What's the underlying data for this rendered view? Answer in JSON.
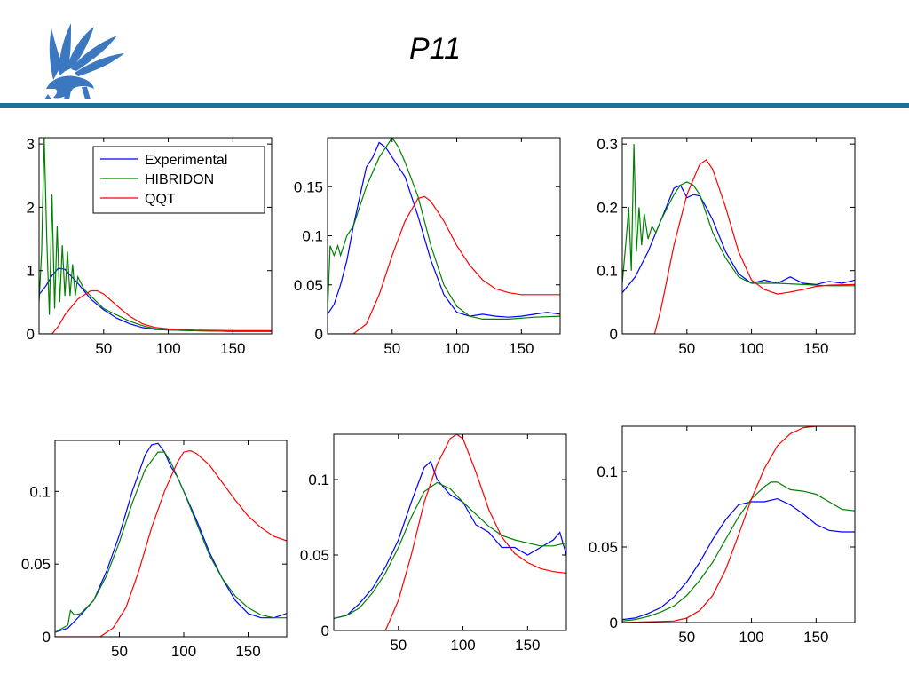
{
  "slide": {
    "title": "P11",
    "rule_color": "#1f6f9b",
    "logo_icon": "griffin-logo-icon",
    "logo_color": "#3c78c0"
  },
  "chart_data": [
    {
      "type": "line",
      "xlim": [
        0,
        180
      ],
      "ylim": [
        0,
        3.1
      ],
      "xticks": [
        "50",
        "100",
        "150"
      ],
      "yticks": [
        "0",
        "1",
        "2",
        "3"
      ],
      "legend": {
        "placement": "top-right",
        "entries": [
          "Experimental",
          "HIBRIDON",
          "QQT"
        ]
      },
      "series": [
        {
          "name": "Experimental",
          "color": "#0000ff",
          "x": [
            0,
            5,
            10,
            15,
            20,
            30,
            40,
            50,
            60,
            70,
            80,
            90,
            100,
            120,
            150,
            180
          ],
          "y": [
            0.62,
            0.75,
            0.92,
            1.04,
            1.02,
            0.8,
            0.55,
            0.38,
            0.25,
            0.16,
            0.1,
            0.07,
            0.06,
            0.05,
            0.04,
            0.04
          ]
        },
        {
          "name": "HIBRIDON",
          "color": "#008000",
          "x": [
            0,
            2,
            4,
            6,
            8,
            10,
            12,
            14,
            16,
            18,
            20,
            22,
            24,
            26,
            28,
            30,
            35,
            40,
            45,
            50,
            60,
            70,
            80,
            90,
            100,
            120,
            150,
            180
          ],
          "y": [
            0.5,
            1.3,
            3.1,
            1.5,
            0.3,
            2.2,
            0.4,
            1.7,
            0.5,
            1.4,
            0.6,
            1.3,
            0.6,
            1.1,
            0.6,
            0.9,
            0.7,
            0.6,
            0.5,
            0.4,
            0.3,
            0.2,
            0.13,
            0.08,
            0.06,
            0.05,
            0.04,
            0.04
          ]
        },
        {
          "name": "QQT",
          "color": "#ff0000",
          "x": [
            0,
            10,
            15,
            20,
            30,
            40,
            45,
            50,
            60,
            70,
            80,
            90,
            100,
            120,
            150,
            180
          ],
          "y": [
            0,
            0,
            0.12,
            0.3,
            0.55,
            0.68,
            0.68,
            0.63,
            0.45,
            0.28,
            0.16,
            0.1,
            0.08,
            0.06,
            0.05,
            0.05
          ]
        }
      ]
    },
    {
      "type": "line",
      "xlim": [
        0,
        180
      ],
      "ylim": [
        0,
        0.2
      ],
      "xticks": [
        "50",
        "100",
        "150"
      ],
      "yticks": [
        "0",
        "0.05",
        "0.1",
        "0.15"
      ],
      "series": [
        {
          "name": "Experimental",
          "color": "#0000ff",
          "x": [
            0,
            5,
            10,
            15,
            20,
            25,
            30,
            35,
            40,
            45,
            50,
            55,
            60,
            70,
            80,
            90,
            100,
            110,
            120,
            130,
            140,
            150,
            160,
            170,
            180
          ],
          "y": [
            0.02,
            0.03,
            0.05,
            0.075,
            0.11,
            0.14,
            0.17,
            0.18,
            0.195,
            0.19,
            0.18,
            0.17,
            0.16,
            0.12,
            0.075,
            0.04,
            0.022,
            0.018,
            0.02,
            0.018,
            0.017,
            0.018,
            0.02,
            0.022,
            0.02
          ]
        },
        {
          "name": "HIBRIDON",
          "color": "#008000",
          "x": [
            0,
            2,
            5,
            8,
            10,
            15,
            20,
            25,
            30,
            35,
            40,
            45,
            50,
            55,
            60,
            70,
            80,
            90,
            100,
            110,
            120,
            140,
            160,
            180
          ],
          "y": [
            0.02,
            0.09,
            0.08,
            0.09,
            0.08,
            0.1,
            0.11,
            0.13,
            0.15,
            0.165,
            0.18,
            0.19,
            0.2,
            0.19,
            0.175,
            0.14,
            0.09,
            0.05,
            0.028,
            0.018,
            0.015,
            0.015,
            0.017,
            0.018
          ]
        },
        {
          "name": "QQT",
          "color": "#ff0000",
          "x": [
            0,
            20,
            30,
            40,
            50,
            60,
            70,
            75,
            80,
            90,
            100,
            110,
            120,
            130,
            140,
            150,
            160,
            180
          ],
          "y": [
            0,
            0,
            0.01,
            0.04,
            0.08,
            0.115,
            0.138,
            0.14,
            0.135,
            0.115,
            0.09,
            0.07,
            0.055,
            0.046,
            0.042,
            0.04,
            0.04,
            0.04
          ]
        }
      ]
    },
    {
      "type": "line",
      "xlim": [
        0,
        180
      ],
      "ylim": [
        0,
        0.31
      ],
      "xticks": [
        "50",
        "100",
        "150"
      ],
      "yticks": [
        "0",
        "0.1",
        "0.2",
        "0.3"
      ],
      "series": [
        {
          "name": "Experimental",
          "color": "#0000ff",
          "x": [
            0,
            10,
            20,
            30,
            40,
            45,
            50,
            55,
            60,
            65,
            70,
            80,
            90,
            100,
            110,
            120,
            130,
            140,
            150,
            160,
            170,
            180
          ],
          "y": [
            0.065,
            0.09,
            0.13,
            0.18,
            0.23,
            0.235,
            0.215,
            0.22,
            0.218,
            0.2,
            0.18,
            0.13,
            0.095,
            0.08,
            0.085,
            0.08,
            0.09,
            0.08,
            0.078,
            0.083,
            0.08,
            0.085
          ]
        },
        {
          "name": "HIBRIDON",
          "color": "#008000",
          "x": [
            0,
            3,
            5,
            7,
            9,
            11,
            13,
            15,
            17,
            20,
            23,
            26,
            30,
            35,
            40,
            45,
            50,
            55,
            60,
            65,
            70,
            80,
            90,
            100,
            110,
            120,
            140,
            160,
            180
          ],
          "y": [
            0.08,
            0.15,
            0.2,
            0.1,
            0.3,
            0.13,
            0.2,
            0.14,
            0.19,
            0.15,
            0.17,
            0.16,
            0.18,
            0.2,
            0.22,
            0.235,
            0.24,
            0.235,
            0.22,
            0.19,
            0.16,
            0.12,
            0.09,
            0.08,
            0.08,
            0.08,
            0.078,
            0.076,
            0.076
          ]
        },
        {
          "name": "QQT",
          "color": "#ff0000",
          "x": [
            0,
            25,
            30,
            40,
            50,
            60,
            65,
            70,
            80,
            90,
            100,
            110,
            120,
            130,
            140,
            150,
            160,
            180
          ],
          "y": [
            0,
            0,
            0.04,
            0.14,
            0.22,
            0.268,
            0.275,
            0.26,
            0.2,
            0.13,
            0.085,
            0.07,
            0.063,
            0.066,
            0.07,
            0.075,
            0.077,
            0.078
          ]
        }
      ]
    },
    {
      "type": "line",
      "xlim": [
        0,
        180
      ],
      "ylim": [
        0,
        0.135
      ],
      "xticks": [
        "50",
        "100",
        "150"
      ],
      "yticks": [
        "0",
        "0.05",
        "0.1"
      ],
      "series": [
        {
          "name": "Experimental",
          "color": "#0000ff",
          "x": [
            0,
            10,
            20,
            30,
            40,
            50,
            60,
            70,
            75,
            80,
            85,
            90,
            95,
            100,
            110,
            120,
            130,
            140,
            150,
            160,
            170,
            180
          ],
          "y": [
            0.003,
            0.006,
            0.015,
            0.025,
            0.045,
            0.07,
            0.1,
            0.125,
            0.132,
            0.133,
            0.127,
            0.117,
            0.11,
            0.1,
            0.08,
            0.058,
            0.04,
            0.025,
            0.016,
            0.013,
            0.013,
            0.016
          ]
        },
        {
          "name": "HIBRIDON",
          "color": "#008000",
          "x": [
            0,
            10,
            12,
            15,
            20,
            30,
            40,
            50,
            60,
            70,
            80,
            85,
            90,
            100,
            110,
            120,
            130,
            140,
            150,
            160,
            170,
            180
          ],
          "y": [
            0.003,
            0.008,
            0.018,
            0.015,
            0.016,
            0.025,
            0.042,
            0.065,
            0.092,
            0.115,
            0.127,
            0.127,
            0.12,
            0.1,
            0.078,
            0.056,
            0.04,
            0.028,
            0.02,
            0.015,
            0.013,
            0.013
          ]
        },
        {
          "name": "QQT",
          "color": "#ff0000",
          "x": [
            0,
            35,
            45,
            55,
            65,
            75,
            85,
            95,
            100,
            105,
            110,
            120,
            130,
            140,
            150,
            160,
            170,
            180
          ],
          "y": [
            0,
            0,
            0.006,
            0.02,
            0.045,
            0.075,
            0.1,
            0.12,
            0.127,
            0.128,
            0.126,
            0.118,
            0.106,
            0.094,
            0.083,
            0.075,
            0.069,
            0.066
          ]
        }
      ]
    },
    {
      "type": "line",
      "xlim": [
        0,
        180
      ],
      "ylim": [
        0,
        0.13
      ],
      "xticks": [
        "50",
        "100",
        "150"
      ],
      "yticks": [
        "0",
        "0.05",
        "0.1"
      ],
      "series": [
        {
          "name": "Experimental",
          "color": "#0000ff",
          "x": [
            0,
            10,
            20,
            30,
            40,
            50,
            60,
            70,
            75,
            80,
            90,
            100,
            110,
            120,
            130,
            140,
            150,
            160,
            170,
            175,
            180
          ],
          "y": [
            0.008,
            0.01,
            0.018,
            0.028,
            0.042,
            0.06,
            0.085,
            0.108,
            0.112,
            0.1,
            0.09,
            0.085,
            0.07,
            0.065,
            0.055,
            0.055,
            0.05,
            0.055,
            0.06,
            0.065,
            0.05
          ]
        },
        {
          "name": "HIBRIDON",
          "color": "#008000",
          "x": [
            0,
            10,
            20,
            30,
            40,
            50,
            60,
            70,
            80,
            90,
            100,
            110,
            120,
            130,
            140,
            150,
            160,
            170,
            180
          ],
          "y": [
            0.008,
            0.01,
            0.015,
            0.025,
            0.038,
            0.055,
            0.075,
            0.092,
            0.098,
            0.094,
            0.085,
            0.077,
            0.069,
            0.063,
            0.06,
            0.058,
            0.056,
            0.056,
            0.058
          ]
        },
        {
          "name": "QQT",
          "color": "#ff0000",
          "x": [
            0,
            40,
            50,
            60,
            70,
            80,
            90,
            95,
            100,
            110,
            120,
            130,
            140,
            150,
            160,
            170,
            180
          ],
          "y": [
            0,
            0,
            0.02,
            0.05,
            0.085,
            0.11,
            0.127,
            0.13,
            0.127,
            0.105,
            0.08,
            0.062,
            0.051,
            0.045,
            0.041,
            0.039,
            0.038
          ]
        }
      ]
    },
    {
      "type": "line",
      "xlim": [
        0,
        180
      ],
      "ylim": [
        0,
        0.13
      ],
      "xticks": [
        "50",
        "100",
        "150"
      ],
      "yticks": [
        "0",
        "0.05",
        "0.1"
      ],
      "series": [
        {
          "name": "Experimental",
          "color": "#0000ff",
          "x": [
            0,
            10,
            20,
            30,
            40,
            50,
            60,
            70,
            80,
            90,
            100,
            110,
            120,
            130,
            140,
            150,
            160,
            170,
            180
          ],
          "y": [
            0.002,
            0.003,
            0.006,
            0.01,
            0.017,
            0.027,
            0.04,
            0.055,
            0.068,
            0.078,
            0.08,
            0.08,
            0.082,
            0.078,
            0.072,
            0.065,
            0.061,
            0.06,
            0.06
          ]
        },
        {
          "name": "HIBRIDON",
          "color": "#008000",
          "x": [
            0,
            10,
            20,
            30,
            40,
            50,
            60,
            70,
            80,
            90,
            100,
            110,
            115,
            120,
            130,
            140,
            150,
            160,
            170,
            180
          ],
          "y": [
            0.001,
            0.002,
            0.004,
            0.007,
            0.011,
            0.018,
            0.028,
            0.04,
            0.055,
            0.07,
            0.082,
            0.09,
            0.093,
            0.093,
            0.088,
            0.087,
            0.085,
            0.08,
            0.075,
            0.074
          ]
        },
        {
          "name": "QQT",
          "color": "#ff0000",
          "x": [
            0,
            40,
            50,
            60,
            70,
            80,
            90,
            100,
            110,
            120,
            130,
            140,
            150,
            160,
            170,
            180
          ],
          "y": [
            0,
            0.001,
            0.003,
            0.008,
            0.018,
            0.035,
            0.058,
            0.082,
            0.102,
            0.117,
            0.125,
            0.129,
            0.13,
            0.13,
            0.13,
            0.13
          ]
        }
      ]
    }
  ]
}
